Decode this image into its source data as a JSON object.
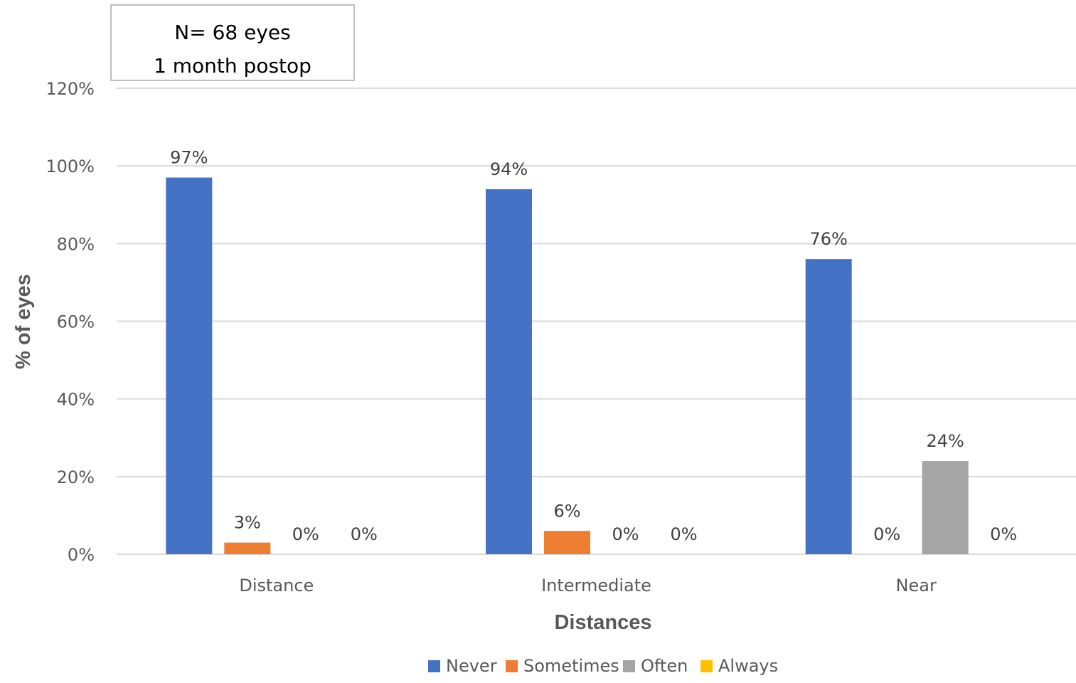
{
  "chart_data": {
    "type": "bar",
    "title": "",
    "categories": [
      "Distance",
      "Intermediate",
      "Near"
    ],
    "series": [
      {
        "name": "Never",
        "color": "#4472C4",
        "values": [
          97,
          94,
          76
        ],
        "labels": [
          "97%",
          "94%",
          "76%"
        ]
      },
      {
        "name": "Sometimes",
        "color": "#ED7D31",
        "values": [
          3,
          6,
          0
        ],
        "labels": [
          "3%",
          "6%",
          "0%"
        ]
      },
      {
        "name": "Often",
        "color": "#A5A5A5",
        "values": [
          0,
          0,
          24
        ],
        "labels": [
          "0%",
          "0%",
          "24%"
        ]
      },
      {
        "name": "Always",
        "color": "#FFC000",
        "values": [
          0,
          0,
          0
        ],
        "labels": [
          "0%",
          "0%",
          "0%"
        ]
      }
    ],
    "xlabel": "Distances",
    "ylabel": "% of eyes",
    "ylim": [
      0,
      120
    ],
    "yticks": [
      0,
      20,
      40,
      60,
      80,
      100,
      120
    ],
    "ytick_labels": [
      "0%",
      "20%",
      "40%",
      "60%",
      "80%",
      "100%",
      "120%"
    ],
    "grid": true,
    "legend_position": "bottom",
    "annotation": {
      "lines": [
        "N= 68 eyes",
        "1 month postop"
      ]
    }
  }
}
